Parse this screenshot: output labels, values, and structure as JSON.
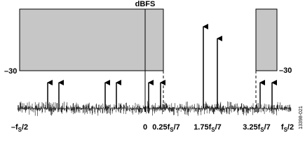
{
  "axis_label": "dBFS",
  "levels": {
    "left": "–30",
    "right": "–30"
  },
  "x_labels": [
    {
      "main": "–f",
      "sub": "S",
      "suffix": "/2"
    },
    {
      "main": "0"
    },
    {
      "main": "0.25f",
      "sub": "S",
      "suffix": "/7"
    },
    {
      "main": "1.75f",
      "sub": "S",
      "suffix": "/7"
    },
    {
      "main": "3.25f",
      "sub": "S",
      "suffix": "/7"
    },
    {
      "main": "f",
      "sub": "S",
      "suffix": "/2"
    }
  ],
  "figure_id": "13398-021"
}
